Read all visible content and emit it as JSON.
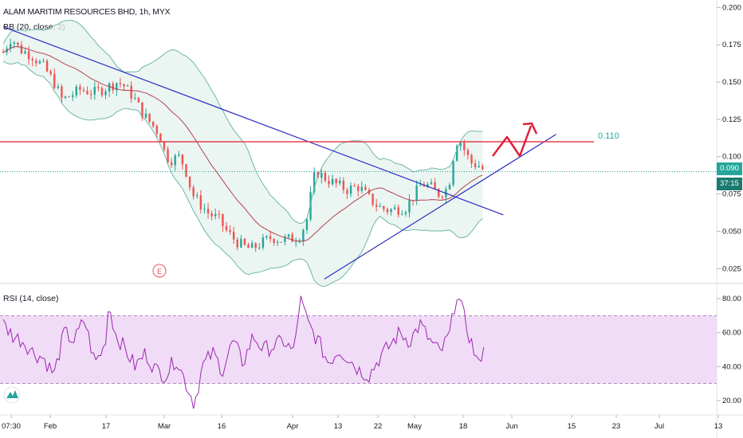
{
  "header": {
    "title": "ALAM MARITIM RESOURCES BHD, 1h, MYX"
  },
  "indicators": {
    "bb_label": "BB (20, close, 2)",
    "rsi_label": "RSI (14, close)"
  },
  "price_badges": {
    "current": "0.090",
    "countdown": "37:15"
  },
  "annotations": {
    "resistance_label": "0.110",
    "earnings_marker": "E"
  },
  "colors": {
    "up": "#26a69a",
    "down": "#ef5350",
    "bb_band": "#70b8a8",
    "bb_fill": "#e6f3ef",
    "bb_basis": "#b2444f",
    "trendline": "#2c2cbf",
    "resistance": "#e5404f",
    "drawing": "#e0203a",
    "current_line": "#26a69a",
    "rsi_line": "#9c27b0",
    "rsi_band": "#f0dcf6",
    "badge_price": "#26a69a",
    "badge_timer": "#1a7a70"
  },
  "chart_data": [
    {
      "type": "candlestick",
      "title": "ALAM MARITIM RESOURCES BHD, 1h, MYX",
      "x_ticks": [
        "07:30",
        "Feb",
        "17",
        "Mar",
        "16",
        "Apr",
        "13",
        "22",
        "May",
        "18",
        "Jun",
        "15",
        "23",
        "Jul",
        "13"
      ],
      "y_ticks": [
        "0.200",
        "0.175",
        "0.150",
        "0.125",
        "0.100",
        "0.075",
        "0.050",
        "0.025"
      ],
      "ylim": [
        0.015,
        0.205
      ],
      "series": [
        {
          "name": "BB (20, close, 2)",
          "close_path": [
            [
              0,
              0.17
            ],
            [
              0.4,
              0.18
            ],
            [
              0.8,
              0.172
            ],
            [
              1.4,
              0.168
            ],
            [
              2,
              0.16
            ],
            [
              2.5,
              0.15
            ],
            [
              2.9,
              0.138
            ],
            [
              3.2,
              0.14
            ],
            [
              3.8,
              0.145
            ],
            [
              4.5,
              0.143
            ],
            [
              5.2,
              0.147
            ],
            [
              5.6,
              0.15
            ],
            [
              5.9,
              0.148
            ],
            [
              6.4,
              0.14
            ],
            [
              6.9,
              0.128
            ],
            [
              7.3,
              0.122
            ],
            [
              7.7,
              0.115
            ],
            [
              8.0,
              0.1
            ],
            [
              8.3,
              0.098
            ],
            [
              8.7,
              0.1
            ],
            [
              9.0,
              0.09
            ],
            [
              9.3,
              0.075
            ],
            [
              9.7,
              0.068
            ],
            [
              10.1,
              0.062
            ],
            [
              10.6,
              0.058
            ],
            [
              11.0,
              0.05
            ],
            [
              11.4,
              0.044
            ],
            [
              11.8,
              0.04
            ],
            [
              12.2,
              0.038
            ],
            [
              12.7,
              0.042
            ],
            [
              13.2,
              0.046
            ],
            [
              13.7,
              0.044
            ],
            [
              14.2,
              0.045
            ],
            [
              14.6,
              0.047
            ],
            [
              15.0,
              0.06
            ],
            [
              15.2,
              0.082
            ],
            [
              15.4,
              0.09
            ],
            [
              15.8,
              0.086
            ],
            [
              16.3,
              0.082
            ],
            [
              16.9,
              0.078
            ],
            [
              17.5,
              0.08
            ],
            [
              18.0,
              0.072
            ],
            [
              18.5,
              0.066
            ],
            [
              19.0,
              0.064
            ],
            [
              19.4,
              0.065
            ],
            [
              19.8,
              0.066
            ],
            [
              20.2,
              0.074
            ],
            [
              20.6,
              0.082
            ],
            [
              21.0,
              0.08
            ],
            [
              21.4,
              0.075
            ],
            [
              21.8,
              0.078
            ],
            [
              22.0,
              0.086
            ],
            [
              22.2,
              0.106
            ],
            [
              22.4,
              0.113
            ],
            [
              22.7,
              0.104
            ],
            [
              23.0,
              0.096
            ],
            [
              23.4,
              0.094
            ],
            [
              23.7,
              0.09
            ]
          ]
        },
        {
          "name": "Support trendline",
          "from": [
            15.8,
            0.018
          ],
          "to": [
            27.2,
            0.115
          ]
        },
        {
          "name": "Descending trendline",
          "from": [
            0,
            0.187
          ],
          "to": [
            24.6,
            0.061
          ]
        },
        {
          "name": "Resistance",
          "value": 0.11,
          "label": "0.110"
        },
        {
          "name": "Current price",
          "value": 0.09
        }
      ]
    },
    {
      "type": "line",
      "title": "RSI (14, close)",
      "y_ticks": [
        "80.00",
        "60.00",
        "40.00",
        "20.00"
      ],
      "ylim": [
        12,
        88
      ],
      "band": [
        30,
        70
      ],
      "x_ticks": [
        "07:30",
        "Feb",
        "17",
        "Mar",
        "16",
        "Apr",
        "13",
        "22",
        "May",
        "18",
        "Jun",
        "15",
        "23",
        "Jul",
        "13"
      ],
      "values": [
        [
          0,
          65
        ],
        [
          0.5,
          58
        ],
        [
          1.0,
          55
        ],
        [
          1.5,
          48
        ],
        [
          2.0,
          45
        ],
        [
          2.5,
          35
        ],
        [
          3.0,
          60
        ],
        [
          3.5,
          55
        ],
        [
          4.0,
          68
        ],
        [
          4.5,
          42
        ],
        [
          5.0,
          52
        ],
        [
          5.2,
          78
        ],
        [
          5.5,
          60
        ],
        [
          6.0,
          50
        ],
        [
          6.5,
          40
        ],
        [
          7.0,
          48
        ],
        [
          7.5,
          38
        ],
        [
          8.0,
          35
        ],
        [
          8.5,
          45
        ],
        [
          9.0,
          30
        ],
        [
          9.4,
          18
        ],
        [
          9.8,
          40
        ],
        [
          10.3,
          48
        ],
        [
          10.8,
          38
        ],
        [
          11.3,
          55
        ],
        [
          11.8,
          42
        ],
        [
          12.3,
          58
        ],
        [
          12.8,
          50
        ],
        [
          13.3,
          52
        ],
        [
          13.8,
          55
        ],
        [
          14.3,
          48
        ],
        [
          14.6,
          80
        ],
        [
          15.0,
          65
        ],
        [
          15.5,
          55
        ],
        [
          16.0,
          42
        ],
        [
          16.5,
          50
        ],
        [
          17.0,
          45
        ],
        [
          17.5,
          38
        ],
        [
          18.0,
          35
        ],
        [
          18.5,
          45
        ],
        [
          19.0,
          52
        ],
        [
          19.5,
          60
        ],
        [
          20.0,
          55
        ],
        [
          20.5,
          65
        ],
        [
          21.0,
          55
        ],
        [
          21.5,
          48
        ],
        [
          22.0,
          60
        ],
        [
          22.3,
          84
        ],
        [
          22.6,
          72
        ],
        [
          23.0,
          55
        ],
        [
          23.4,
          40
        ],
        [
          23.7,
          58
        ]
      ]
    }
  ]
}
